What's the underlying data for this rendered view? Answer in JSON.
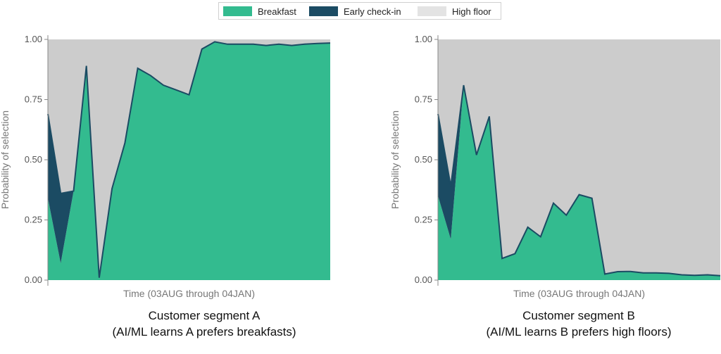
{
  "colors": {
    "breakfast": "#33bb8f",
    "early": "#1b4b63",
    "high": "#cccccc",
    "line": "#1b4b63"
  },
  "legend": [
    {
      "label": "Breakfast",
      "color": "#33bb8f"
    },
    {
      "label": "Early check-in",
      "color": "#1b4b63"
    },
    {
      "label": "High floor",
      "color": "#e3e3e3"
    }
  ],
  "chart_data": [
    {
      "type": "area",
      "stacked": true,
      "ylabel": "Probability of selection",
      "xlabel": "Time (03AUG through 04JAN)",
      "caption": [
        "Customer segment A",
        "(AI/ML learns A prefers breakfasts)"
      ],
      "ylim": [
        0,
        1
      ],
      "yticks": [
        "0.00",
        "0.25",
        "0.50",
        "0.75",
        "1.00"
      ],
      "series": [
        {
          "name": "Breakfast",
          "values": [
            0.34,
            0.07,
            0.37,
            0.89,
            0.01,
            0.38,
            0.57,
            0.88,
            0.85,
            0.81,
            0.79,
            0.77,
            0.96,
            0.99,
            0.98,
            0.98,
            0.98,
            0.975,
            0.98,
            0.975,
            0.98,
            0.983,
            0.985
          ]
        },
        {
          "name": "Early check-in",
          "values": [
            0.35,
            0.29,
            0.0,
            0.0,
            0.0,
            0.0,
            0.0,
            0.0,
            0.0,
            0.0,
            0.0,
            0.0,
            0.0,
            0.0,
            0.0,
            0.0,
            0.0,
            0.0,
            0.0,
            0.0,
            0.0,
            0.0,
            0.0
          ]
        },
        {
          "name": "High floor",
          "values": [
            0.31,
            0.64,
            0.63,
            0.11,
            0.99,
            0.62,
            0.43,
            0.12,
            0.15,
            0.19,
            0.21,
            0.23,
            0.04,
            0.01,
            0.02,
            0.02,
            0.02,
            0.025,
            0.02,
            0.025,
            0.02,
            0.017,
            0.015
          ]
        }
      ]
    },
    {
      "type": "area",
      "stacked": true,
      "ylabel": "Probability of selection",
      "xlabel": "Time (03AUG through 04JAN)",
      "caption": [
        "Customer segment B",
        "(AI/ML learns B prefers high floors)"
      ],
      "ylim": [
        0,
        1
      ],
      "yticks": [
        "0.00",
        "0.25",
        "0.50",
        "0.75",
        "1.00"
      ],
      "series": [
        {
          "name": "Breakfast",
          "values": [
            0.35,
            0.17,
            0.81,
            0.52,
            0.68,
            0.09,
            0.11,
            0.22,
            0.18,
            0.32,
            0.27,
            0.355,
            0.34,
            0.025,
            0.035,
            0.036,
            0.03,
            0.03,
            0.028,
            0.022,
            0.02,
            0.022,
            0.018
          ]
        },
        {
          "name": "Early check-in",
          "values": [
            0.34,
            0.22,
            0.0,
            0.0,
            0.0,
            0.0,
            0.0,
            0.0,
            0.0,
            0.0,
            0.0,
            0.0,
            0.0,
            0.0,
            0.0,
            0.0,
            0.0,
            0.0,
            0.0,
            0.0,
            0.0,
            0.0,
            0.0
          ]
        },
        {
          "name": "High floor",
          "values": [
            0.31,
            0.61,
            0.19,
            0.48,
            0.32,
            0.91,
            0.89,
            0.78,
            0.82,
            0.68,
            0.73,
            0.645,
            0.66,
            0.975,
            0.965,
            0.964,
            0.97,
            0.97,
            0.972,
            0.978,
            0.98,
            0.978,
            0.982
          ]
        }
      ]
    }
  ]
}
